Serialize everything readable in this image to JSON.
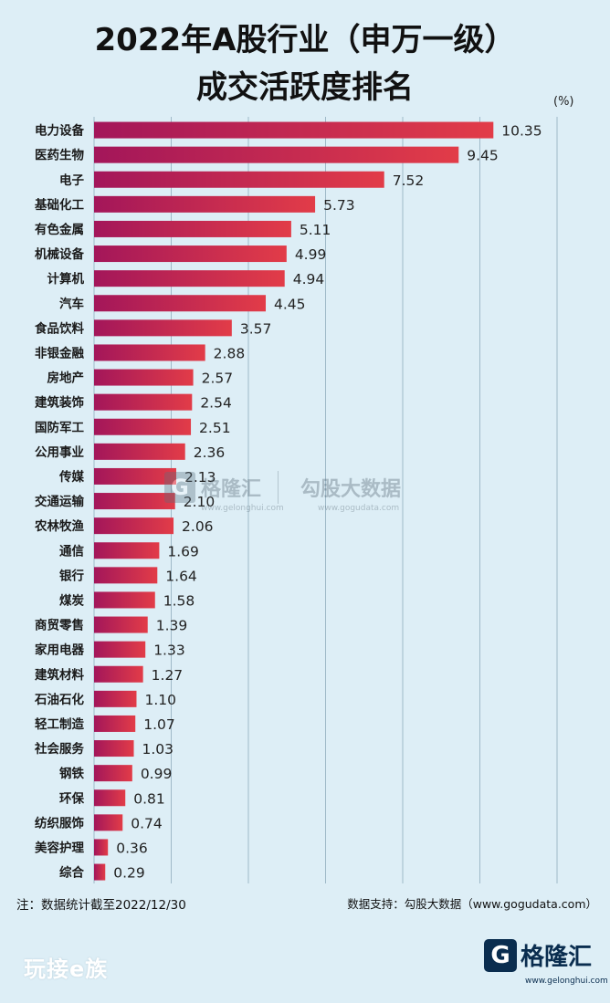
{
  "title_line1": "2022年A股行业（申万一级）",
  "title_line2": "成交活跃度排名",
  "unit": "(%)",
  "note_left": "注：数据统计截至2022/12/30",
  "note_right": "数据支持：勾股大数据（www.gogudata.com）",
  "watermark": {
    "logo_char": "G",
    "name": "格隆汇",
    "url": "www.gelonghui.com",
    "name2": "勾股大数据",
    "url2": "www.gogudata.com"
  },
  "footer": {
    "left_logo": "玩接e族",
    "brand_char": "G",
    "brand_name": "格隆汇",
    "brand_url": "www.gelonghui.com"
  },
  "colors": {
    "bar_start": "#a3165a",
    "bar_end": "#e23c48",
    "grid": "#9fb9c8",
    "background": "#ddeef6"
  },
  "chart_data": {
    "type": "bar",
    "orientation": "horizontal",
    "title": "2022年A股行业（申万一级）成交活跃度排名",
    "unit": "%",
    "grid": true,
    "categories": [
      "电力设备",
      "医药生物",
      "电子",
      "基础化工",
      "有色金属",
      "机械设备",
      "计算机",
      "汽车",
      "食品饮料",
      "非银金融",
      "房地产",
      "建筑装饰",
      "国防军工",
      "公用事业",
      "传媒",
      "交通运输",
      "农林牧渔",
      "通信",
      "银行",
      "煤炭",
      "商贸零售",
      "家用电器",
      "建筑材料",
      "石油石化",
      "轻工制造",
      "社会服务",
      "钢铁",
      "环保",
      "纺织服饰",
      "美容护理",
      "综合"
    ],
    "values": [
      10.35,
      9.45,
      7.52,
      5.73,
      5.11,
      4.99,
      4.94,
      4.45,
      3.57,
      2.88,
      2.57,
      2.54,
      2.51,
      2.36,
      2.13,
      2.1,
      2.06,
      1.69,
      1.64,
      1.58,
      1.39,
      1.33,
      1.27,
      1.1,
      1.07,
      1.03,
      0.99,
      0.81,
      0.74,
      0.36,
      0.29
    ],
    "value_labels": [
      "10.35",
      "9.45",
      "7.52",
      "5.73",
      "5.11",
      "4.99",
      "4.94",
      "4.45",
      "3.57",
      "2.88",
      "2.57",
      "2.54",
      "2.51",
      "2.36",
      "2.13",
      "2.10",
      "2.06",
      "1.69",
      "1.64",
      "1.58",
      "1.39",
      "1.33",
      "1.27",
      "1.10",
      "1.07",
      "1.03",
      "0.99",
      "0.81",
      "0.74",
      "0.36",
      "0.29"
    ],
    "xlim": [
      0,
      12
    ]
  }
}
